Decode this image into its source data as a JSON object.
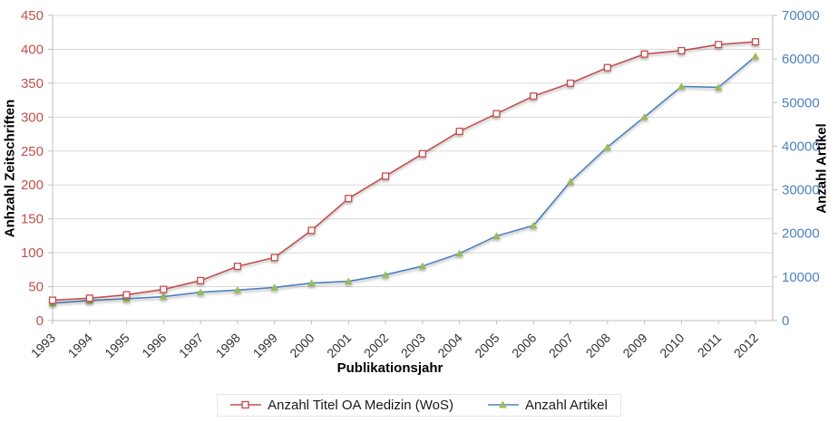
{
  "chart_data": {
    "type": "line",
    "title": "",
    "xlabel": "Publikationsjahr",
    "ylabel_left": "Anhzahl Zeitschriften",
    "ylabel_right": "Anzahl Artikel",
    "categories": [
      "1993",
      "1994",
      "1995",
      "1996",
      "1997",
      "1998",
      "1999",
      "2000",
      "2001",
      "2002",
      "2003",
      "2004",
      "2005",
      "2006",
      "2007",
      "2008",
      "2009",
      "2010",
      "2011",
      "2012"
    ],
    "y_left_axis": {
      "min": 0,
      "max": 450,
      "step": 50,
      "ticks": [
        0,
        50,
        100,
        150,
        200,
        250,
        300,
        350,
        400,
        450
      ]
    },
    "y_right_axis": {
      "min": 0,
      "max": 70000,
      "step": 10000,
      "ticks": [
        0,
        10000,
        20000,
        30000,
        40000,
        50000,
        60000,
        70000
      ]
    },
    "grid": true,
    "legend_position": "bottom",
    "series": [
      {
        "name": "Anzahl Titel OA Medizin (WoS)",
        "axis": "left",
        "marker": "square-open",
        "values": [
          30,
          33,
          38,
          46,
          59,
          80,
          93,
          133,
          180,
          213,
          246,
          279,
          305,
          331,
          350,
          373,
          393,
          398,
          407,
          411
        ]
      },
      {
        "name": "Anzahl Artikel",
        "axis": "right",
        "marker": "triangle",
        "values": [
          4000,
          4600,
          5000,
          5500,
          6500,
          7000,
          7600,
          8600,
          9000,
          10500,
          12500,
          15400,
          19400,
          21800,
          31900,
          39800,
          46700,
          53700,
          53500,
          60600
        ]
      }
    ]
  },
  "colors": {
    "series1_line": "#C0504D",
    "series1_marker_fill": "#FFFFFF",
    "series2_line": "#4F81BD",
    "series2_marker_fill": "#9BBB59",
    "y_left_tick_text": "#C0504D",
    "y_right_tick_text": "#4F81BD",
    "x_tick_text": "#333333",
    "gridline": "#D9D9D9",
    "axis_line": "#BFBFBF"
  },
  "legend": {
    "item1_label": "Anzahl Titel OA Medizin (WoS)",
    "item2_label": "Anzahl Artikel"
  },
  "titles": {
    "y_left": "Anhzahl Zeitschriften",
    "y_right": "Anzahl Artikel",
    "x": "Publikationsjahr"
  }
}
